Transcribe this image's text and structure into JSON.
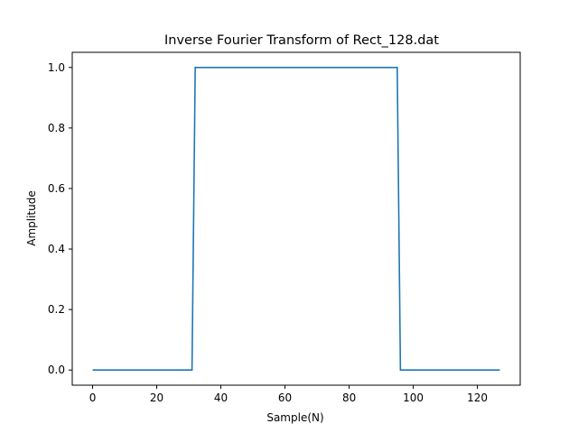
{
  "chart_data": {
    "type": "line",
    "title": "Inverse Fourier Transform of Rect_128.dat",
    "xlabel": "Sample(N)",
    "ylabel": "Amplitude",
    "xlim": [
      -6.35,
      133.35
    ],
    "ylim": [
      -0.05,
      1.05
    ],
    "xticks": [
      0,
      20,
      40,
      60,
      80,
      100,
      120
    ],
    "xtick_labels": [
      "0",
      "20",
      "40",
      "60",
      "80",
      "100",
      "120"
    ],
    "yticks": [
      0.0,
      0.2,
      0.4,
      0.6,
      0.8,
      1.0
    ],
    "ytick_labels": [
      "0.0",
      "0.2",
      "0.4",
      "0.6",
      "0.8",
      "1.0"
    ],
    "grid": false,
    "series": [
      {
        "color": "#1f77b4",
        "x": [
          0,
          31,
          32,
          95,
          96,
          127
        ],
        "y": [
          0,
          0,
          1,
          1,
          0,
          0
        ]
      }
    ]
  }
}
